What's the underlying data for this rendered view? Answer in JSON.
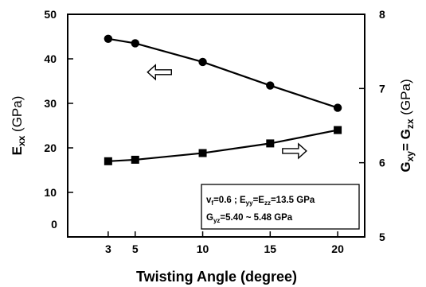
{
  "chart_data": {
    "type": "line",
    "x": [
      3,
      5,
      10,
      15,
      20
    ],
    "x_ticks": [
      3,
      5,
      10,
      15,
      20
    ],
    "x_zero_label": "0",
    "xlim": [
      0,
      22
    ],
    "xlabel": "Twisting Angle (degree)",
    "left_axis": {
      "label": {
        "main": "E",
        "sub": "xx",
        "unit": " (GPa)"
      },
      "ylim": [
        0,
        50
      ],
      "ticks": [
        10,
        20,
        30,
        40,
        50
      ]
    },
    "right_axis": {
      "label": {
        "main1": "G",
        "sub1": "xy",
        "eq": "= G",
        "sub2": "zx",
        "unit": " (GPa)"
      },
      "ylim": [
        5,
        8
      ],
      "ticks": [
        5,
        6,
        7,
        8
      ]
    },
    "series": [
      {
        "axis": "left",
        "marker": "circle",
        "values": [
          44.5,
          43.5,
          39.3,
          34.0,
          29.0
        ]
      },
      {
        "axis": "right",
        "marker": "square",
        "values": [
          6.02,
          6.04,
          6.13,
          6.26,
          6.44
        ]
      }
    ],
    "annotation": {
      "line1": {
        "v": "v",
        "vsub": "f",
        "rest1": "=0.6 ; E",
        "sub1": "yy",
        "eq": "=E",
        "sub2": "zz",
        "rest2": "=13.5 GPa"
      },
      "line2": {
        "g": "G",
        "gsub": "yz",
        "rest": "=5.40 ~ 5.48 GPa"
      }
    },
    "arrows": [
      {
        "direction": "left",
        "x": 6.8,
        "y_left": 37
      },
      {
        "direction": "right",
        "x": 16.8,
        "y_left": 19.3
      }
    ],
    "colors": {
      "line": "#000000",
      "background": "#ffffff"
    },
    "grid": false
  }
}
